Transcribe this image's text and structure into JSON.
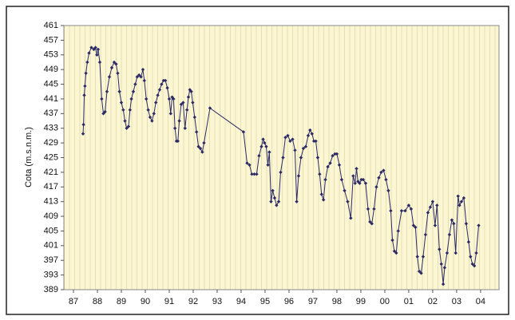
{
  "chart_data": {
    "type": "line",
    "ylabel": "Cota (m.s.n.m.)",
    "x": [
      87.4,
      87.42,
      87.45,
      87.48,
      87.52,
      87.58,
      87.65,
      87.75,
      87.85,
      87.92,
      87.98,
      88.03,
      88.1,
      88.18,
      88.25,
      88.32,
      88.4,
      88.5,
      88.6,
      88.7,
      88.78,
      88.85,
      88.92,
      89.0,
      89.08,
      89.15,
      89.22,
      89.3,
      89.36,
      89.42,
      89.5,
      89.58,
      89.66,
      89.74,
      89.82,
      89.9,
      89.96,
      90.04,
      90.12,
      90.2,
      90.28,
      90.36,
      90.44,
      90.52,
      90.6,
      90.68,
      90.76,
      90.84,
      90.92,
      91.0,
      91.06,
      91.12,
      91.18,
      91.24,
      91.3,
      91.36,
      91.42,
      91.5,
      91.58,
      91.66,
      91.74,
      91.8,
      91.86,
      91.92,
      91.98,
      92.06,
      92.14,
      92.22,
      92.3,
      92.38,
      92.45,
      92.7,
      94.1,
      94.25,
      94.35,
      94.45,
      94.55,
      94.65,
      94.75,
      94.85,
      94.92,
      94.98,
      95.05,
      95.12,
      95.18,
      95.25,
      95.32,
      95.4,
      95.48,
      95.57,
      95.65,
      95.75,
      95.85,
      95.95,
      96.05,
      96.15,
      96.25,
      96.32,
      96.4,
      96.5,
      96.6,
      96.7,
      96.8,
      96.88,
      96.96,
      97.04,
      97.12,
      97.2,
      97.28,
      97.36,
      97.44,
      97.52,
      97.62,
      97.72,
      97.82,
      97.92,
      98.0,
      98.1,
      98.2,
      98.32,
      98.45,
      98.58,
      98.68,
      98.76,
      98.82,
      98.88,
      98.95,
      99.02,
      99.1,
      99.2,
      99.3,
      99.38,
      99.46,
      99.55,
      99.65,
      99.75,
      99.85,
      99.95,
      100.05,
      100.15,
      100.25,
      100.32,
      100.4,
      100.48,
      100.56,
      100.7,
      100.85,
      101.0,
      101.1,
      101.2,
      101.28,
      101.36,
      101.44,
      101.52,
      101.6,
      101.7,
      101.8,
      101.9,
      102.0,
      102.1,
      102.18,
      102.28,
      102.36,
      102.44,
      102.5,
      102.6,
      102.7,
      102.8,
      102.88,
      102.96,
      103.06,
      103.12,
      103.2,
      103.3,
      103.4,
      103.5,
      103.58,
      103.66,
      103.74,
      103.82,
      103.92
    ],
    "series": [
      {
        "color": "#2b2a66",
        "values": [
          431.5,
          434,
          442,
          444.5,
          448,
          451,
          453.5,
          455,
          454.5,
          455,
          453,
          454.5,
          451,
          441,
          437,
          437.5,
          443,
          447,
          449.5,
          451,
          450.5,
          448,
          443,
          440,
          438,
          435,
          433,
          433.5,
          438,
          441,
          443,
          445,
          447,
          447.5,
          447,
          449,
          446,
          441,
          438,
          436,
          435,
          437,
          440,
          442,
          443.5,
          445,
          446,
          446,
          444,
          441,
          437,
          441.5,
          441,
          433,
          429.5,
          429.5,
          435,
          439.5,
          440,
          433,
          438,
          441.5,
          443.5,
          443,
          440,
          436,
          432,
          428,
          427.5,
          426.5,
          429,
          438.5,
          432,
          423.5,
          423,
          420.5,
          420.5,
          420.5,
          425.5,
          428,
          430,
          429,
          428,
          423,
          426.5,
          413,
          416,
          414,
          412,
          413,
          421,
          425,
          430.5,
          431,
          429.5,
          430,
          427,
          413,
          420,
          425,
          427.5,
          428,
          431,
          432.5,
          431.5,
          429.5,
          429.5,
          425,
          420.5,
          415,
          413.5,
          419,
          422.5,
          423.5,
          425.5,
          426,
          426,
          423,
          419,
          416,
          413,
          408.5,
          420,
          418,
          422,
          418.5,
          418,
          419,
          419,
          418,
          411,
          407.5,
          407,
          411,
          417,
          419.5,
          421,
          421.5,
          419,
          416,
          410.5,
          402.5,
          399.5,
          399,
          405,
          410.5,
          410.5,
          412,
          411,
          406.5,
          406,
          398,
          394,
          393.5,
          398,
          404,
          410,
          411.5,
          413,
          406.5,
          412,
          400,
          396,
          390.5,
          395,
          399,
          404,
          408,
          407,
          399,
          414.5,
          412,
          413,
          414,
          407,
          402,
          398,
          396,
          395.5,
          399,
          406.5
        ]
      }
    ],
    "xlim": [
      86.6,
      104.77
    ],
    "xticks": [
      87,
      88,
      89,
      90,
      91,
      92,
      93,
      94,
      95,
      96,
      97,
      98,
      99,
      {
        "value": 100,
        "label": "00"
      },
      {
        "value": 101,
        "label": "01"
      },
      {
        "value": 102,
        "label": "02"
      },
      {
        "value": 103,
        "label": "03"
      },
      {
        "value": 104,
        "label": "04"
      }
    ],
    "ylim": [
      389,
      461
    ],
    "yticks": [
      389,
      393,
      397,
      401,
      405,
      409,
      413,
      417,
      421,
      425,
      429,
      433,
      437,
      441,
      445,
      449,
      453,
      457,
      461
    ],
    "grid": false
  }
}
